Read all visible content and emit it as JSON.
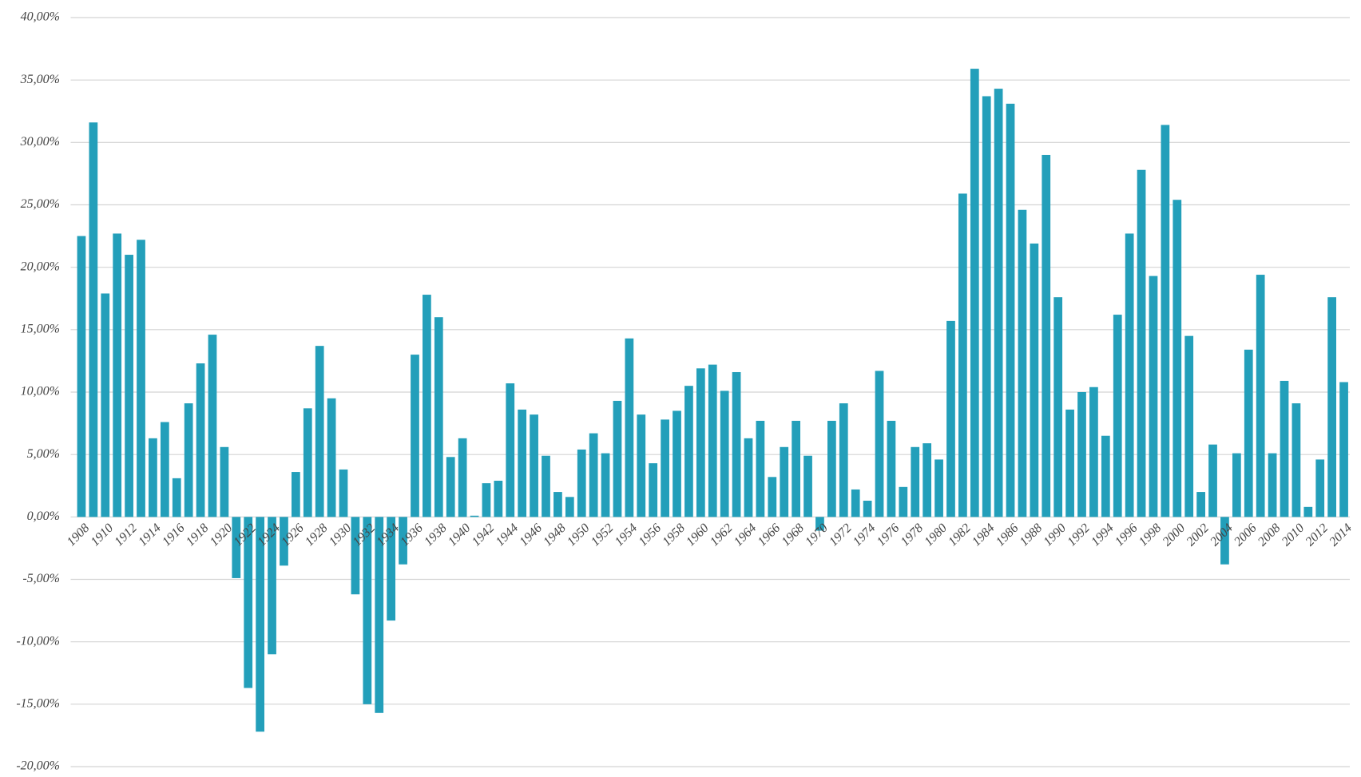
{
  "chart_data": {
    "type": "bar",
    "color": "#239fba",
    "grid": true,
    "categories": [
      "1908",
      null,
      "1910",
      null,
      "1912",
      null,
      "1914",
      null,
      "1916",
      null,
      "1918",
      null,
      "1920",
      null,
      "1922",
      null,
      "1924",
      null,
      "1926",
      null,
      "1928",
      null,
      "1930",
      null,
      "1932",
      null,
      "1934",
      null,
      "1936",
      null,
      "1938",
      null,
      "1940",
      null,
      "1942",
      null,
      "1944",
      null,
      "1946",
      null,
      "1948",
      null,
      "1950",
      null,
      "1952",
      null,
      "1954",
      null,
      "1956",
      null,
      "1958",
      null,
      "1960",
      null,
      "1962",
      null,
      "1964",
      null,
      "1966",
      null,
      "1968",
      null,
      "1970",
      null,
      "1972",
      null,
      "1974",
      null,
      "1976",
      null,
      "1978",
      null,
      "1980",
      null,
      "1982",
      null,
      "1984",
      null,
      "1986",
      null,
      "1988",
      null,
      "1990",
      null,
      "1992",
      null,
      "1994",
      null,
      "1996",
      null,
      "1998",
      null,
      "2000",
      null,
      "2002",
      null,
      "2004",
      null,
      "2006",
      null,
      "2008",
      null,
      "2010",
      null,
      "2012",
      null,
      "2014"
    ],
    "values": [
      22.5,
      31.6,
      17.9,
      22.7,
      21.0,
      22.2,
      6.3,
      7.6,
      3.1,
      9.1,
      12.3,
      14.6,
      5.6,
      -4.9,
      -13.7,
      -17.2,
      -11.0,
      -3.9,
      3.6,
      8.7,
      13.7,
      9.5,
      3.8,
      -6.2,
      -15.0,
      -15.7,
      -8.3,
      -3.8,
      13.0,
      17.8,
      16.0,
      4.8,
      6.3,
      0.1,
      2.7,
      2.9,
      10.7,
      8.6,
      8.2,
      4.9,
      2.0,
      1.6,
      5.4,
      6.7,
      5.1,
      9.3,
      14.3,
      8.2,
      4.3,
      7.8,
      8.5,
      10.5,
      11.9,
      12.2,
      10.1,
      11.6,
      6.3,
      7.7,
      3.2,
      5.6,
      7.7,
      4.9,
      -1.1,
      7.7,
      9.1,
      2.2,
      1.3,
      11.7,
      7.7,
      2.4,
      5.6,
      5.9,
      4.6,
      15.7,
      25.9,
      35.9,
      33.7,
      34.3,
      33.1,
      24.6,
      21.9,
      29.0,
      17.6,
      8.6,
      10.0,
      10.4,
      6.5,
      16.2,
      22.7,
      27.8,
      19.3,
      31.4,
      25.4,
      14.5,
      2.0,
      5.8,
      -3.8,
      5.1,
      13.4,
      19.4,
      5.1,
      10.9,
      9.1,
      0.8,
      4.6,
      17.6,
      10.8
    ],
    "ylim": [
      -20,
      40
    ],
    "yticks": [
      {
        "value": -20,
        "label": "-20,00%"
      },
      {
        "value": -15,
        "label": "-15,00%"
      },
      {
        "value": -10,
        "label": "-10,00%"
      },
      {
        "value": -5,
        "label": "-5,00%"
      },
      {
        "value": 0,
        "label": "0,00%"
      },
      {
        "value": 5,
        "label": "5,00%"
      },
      {
        "value": 10,
        "label": "10,00%"
      },
      {
        "value": 15,
        "label": "15,00%"
      },
      {
        "value": 20,
        "label": "20,00%"
      },
      {
        "value": 25,
        "label": "25,00%"
      },
      {
        "value": 30,
        "label": "30,00%"
      },
      {
        "value": 35,
        "label": "35,00%"
      },
      {
        "value": 40,
        "label": "40,00%"
      }
    ]
  }
}
